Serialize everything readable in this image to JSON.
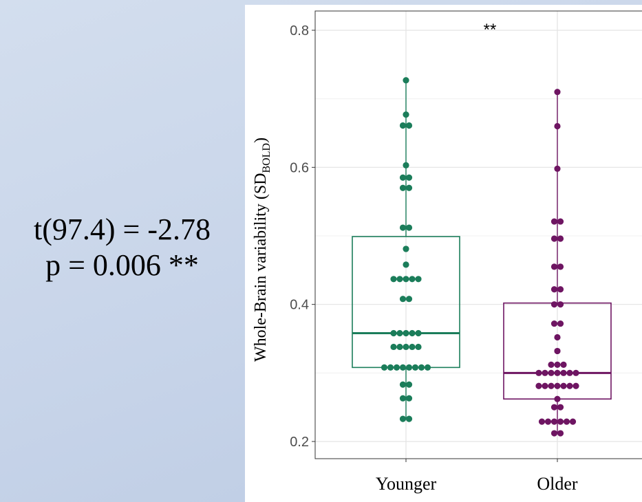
{
  "stats_text": {
    "line1": "t(97.4) = -2.78",
    "line2": "p = 0.006 **"
  },
  "chart_data": {
    "type": "box",
    "title": "",
    "xlabel": "",
    "ylabel": {
      "text": "Whole-Brain variability (SD",
      "subscript": "BOLD",
      "close": ")"
    },
    "ylim": [
      0.18,
      0.83
    ],
    "yticks": [
      0.2,
      0.4,
      0.6,
      0.8
    ],
    "ytick_labels": [
      "0.2",
      "0.4",
      "0.6",
      "0.8"
    ],
    "grid": true,
    "legend": "none",
    "significance": "**",
    "categories": [
      "Younger",
      "Older"
    ],
    "series": [
      {
        "name": "Younger",
        "color": "#1b7d5a",
        "box": {
          "whisker_low": 0.233,
          "q1": 0.308,
          "median": 0.358,
          "q3": 0.499,
          "whisker_high": 0.727
        },
        "points": [
          0.727,
          0.677,
          0.661,
          0.661,
          0.603,
          0.585,
          0.585,
          0.57,
          0.57,
          0.512,
          0.512,
          0.481,
          0.458,
          0.437,
          0.437,
          0.437,
          0.437,
          0.437,
          0.408,
          0.408,
          0.358,
          0.358,
          0.358,
          0.358,
          0.358,
          0.338,
          0.338,
          0.338,
          0.338,
          0.338,
          0.308,
          0.308,
          0.308,
          0.308,
          0.308,
          0.308,
          0.308,
          0.308,
          0.283,
          0.283,
          0.263,
          0.263,
          0.233,
          0.233
        ]
      },
      {
        "name": "Older",
        "color": "#6e1562",
        "box": {
          "whisker_low": 0.212,
          "q1": 0.262,
          "median": 0.3,
          "q3": 0.402,
          "whisker_high": 0.71
        },
        "points": [
          0.71,
          0.66,
          0.598,
          0.521,
          0.521,
          0.496,
          0.496,
          0.455,
          0.455,
          0.422,
          0.422,
          0.4,
          0.4,
          0.372,
          0.372,
          0.352,
          0.332,
          0.312,
          0.312,
          0.312,
          0.3,
          0.3,
          0.3,
          0.3,
          0.3,
          0.3,
          0.3,
          0.281,
          0.281,
          0.281,
          0.281,
          0.281,
          0.281,
          0.281,
          0.262,
          0.25,
          0.25,
          0.229,
          0.229,
          0.229,
          0.229,
          0.229,
          0.229,
          0.212,
          0.212
        ]
      }
    ]
  }
}
